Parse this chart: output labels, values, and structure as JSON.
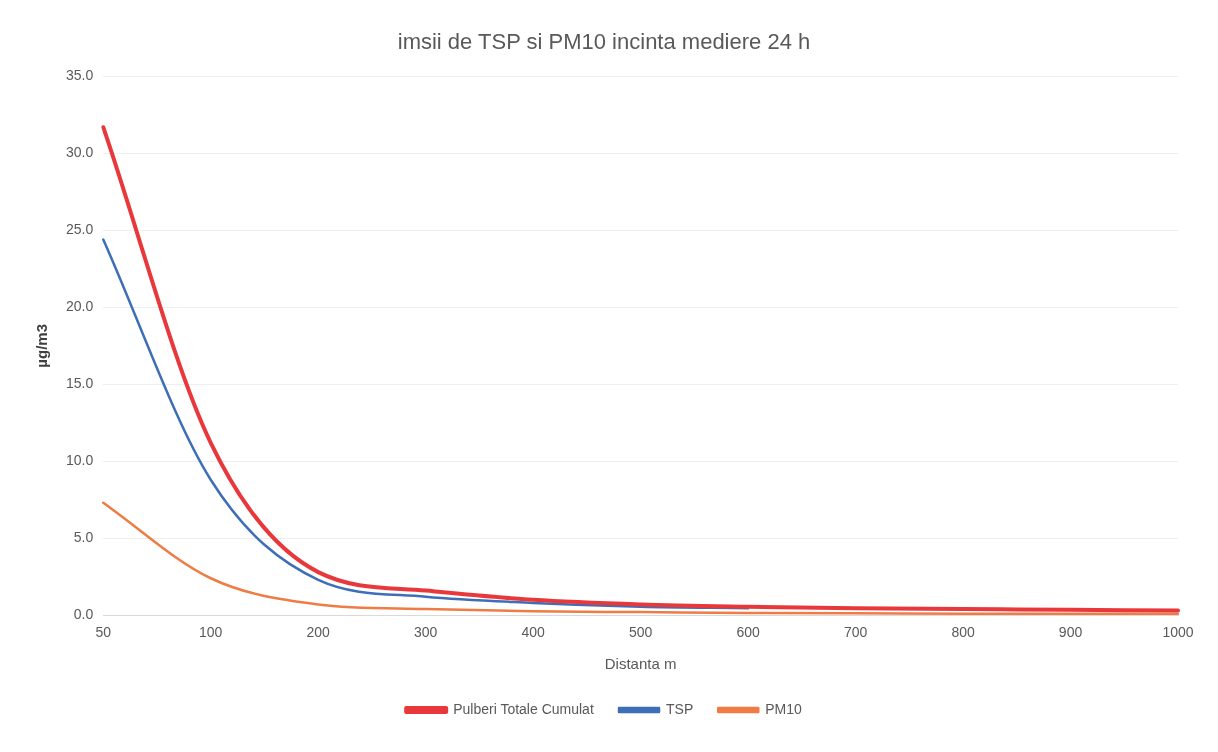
{
  "chart_data": {
    "type": "line",
    "title": "imsii de TSP si PM10 incinta mediere 24 h",
    "xlabel": "Distanta m",
    "ylabel": "µg/m3",
    "categories": [
      "50",
      "100",
      "200",
      "300",
      "400",
      "500",
      "600",
      "700",
      "800",
      "900",
      "1000"
    ],
    "series": [
      {
        "name": "Pulberi Totale Cumulat",
        "color": "#e8383b",
        "values": [
          31.7,
          11.2,
          2.8,
          1.6,
          1.0,
          0.7,
          0.55,
          0.45,
          0.4,
          0.35,
          0.3
        ]
      },
      {
        "name": "TSP",
        "color": "#3d6fb8",
        "values": [
          24.4,
          8.8,
          2.3,
          1.2,
          0.8,
          0.55,
          0.45,
          null,
          null,
          null,
          null
        ]
      },
      {
        "name": "PM10",
        "color": "#f07c45",
        "values": [
          7.3,
          2.4,
          0.7,
          0.4,
          0.25,
          0.2,
          0.15,
          0.12,
          0.1,
          0.1,
          0.1
        ]
      }
    ],
    "ylim": [
      0,
      35
    ],
    "yticks": [
      {
        "value": 0,
        "label": "0.0"
      },
      {
        "value": 5,
        "label": "5.0"
      },
      {
        "value": 10,
        "label": "10.0"
      },
      {
        "value": 15,
        "label": "15.0"
      },
      {
        "value": 20,
        "label": "20.0"
      },
      {
        "value": 25,
        "label": "25.0"
      },
      {
        "value": 30,
        "label": "30.0"
      },
      {
        "value": 35,
        "label": "35.0"
      }
    ],
    "grid": "y",
    "legend": "bottom",
    "marker": "none",
    "line_style": "solid"
  }
}
